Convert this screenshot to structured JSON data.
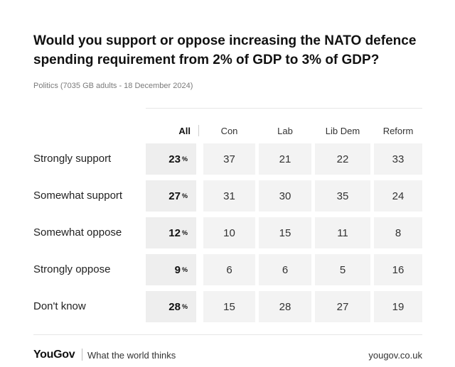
{
  "chart_data": {
    "type": "table",
    "title": "Would you support or oppose increasing the NATO defence spending requirement from 2% of GDP to 3% of GDP?",
    "subtitle": "Politics (7035 GB adults - 18 December 2024)",
    "columns": [
      "All",
      "Con",
      "Lab",
      "Lib Dem",
      "Reform"
    ],
    "unit": "%",
    "rows": [
      {
        "label": "Strongly support",
        "all": 23,
        "values": [
          37,
          21,
          22,
          33
        ]
      },
      {
        "label": "Somewhat support",
        "all": 27,
        "values": [
          31,
          30,
          35,
          24
        ]
      },
      {
        "label": "Somewhat oppose",
        "all": 12,
        "values": [
          10,
          15,
          11,
          8
        ]
      },
      {
        "label": "Strongly oppose",
        "all": 9,
        "values": [
          6,
          6,
          5,
          16
        ]
      },
      {
        "label": "Don't know",
        "all": 28,
        "values": [
          15,
          28,
          27,
          19
        ]
      }
    ]
  },
  "footer": {
    "brand": "YouGov",
    "tagline": "What the world thinks",
    "site": "yougov.co.uk"
  },
  "colors": {
    "cell_bg": "#f3f3f3",
    "all_cell_bg": "#eeeeee",
    "text": "#1a1a1a",
    "muted": "#7a7a7a"
  }
}
